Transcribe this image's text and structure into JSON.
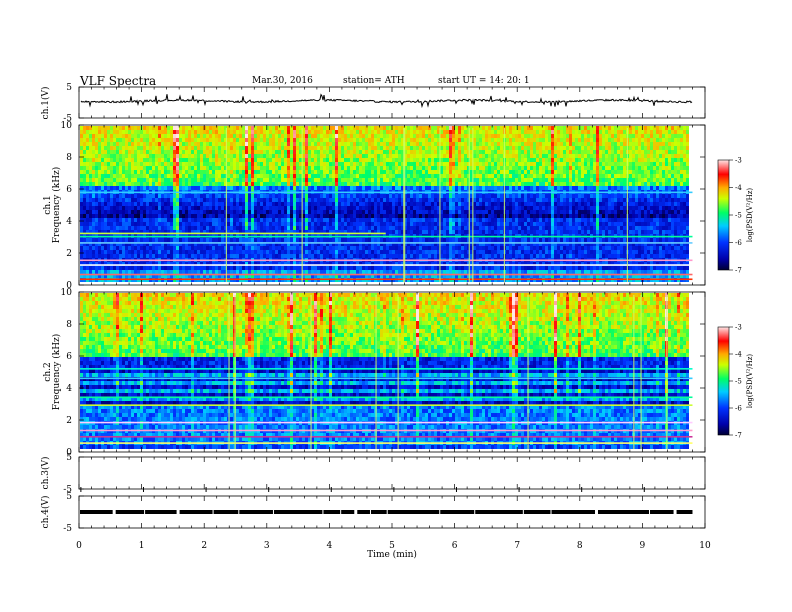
{
  "header": {
    "title": "VLF  Spectra",
    "date": "Mar.30, 2016",
    "station": "station= ATH",
    "start": "start  UT  =    14: 20: 1"
  },
  "chart_data": [
    {
      "type": "line",
      "panel": "ch1",
      "ylabel": "ch.1(V)",
      "ylim": [
        -5,
        5
      ],
      "yticks": [
        "5",
        "-5"
      ],
      "xlim": [
        0,
        10
      ],
      "description_level": "signal hovers near 0 V with spikes"
    },
    {
      "type": "heatmap",
      "panel": "ch1-spectrogram",
      "ylabel_line1": "ch.1",
      "ylabel_line2": "Frequency  (kHz)",
      "ylim": [
        0,
        10
      ],
      "yticks": [
        "0",
        "2",
        "4",
        "6",
        "8",
        "10"
      ],
      "xlim": [
        0,
        9.8
      ],
      "colorbar_label": "log(PSD(V²/Hz)",
      "colorbar_ticks": [
        "-3",
        "-4",
        "-5",
        "-6",
        "-7"
      ],
      "colorbar_range": [
        -7,
        -3
      ],
      "colorbar_colors": [
        "#000066",
        "#0000ff",
        "#00ccff",
        "#00ff66",
        "#ffff00",
        "#ff6600",
        "#ff0000",
        "#ffe0e0"
      ]
    },
    {
      "type": "heatmap",
      "panel": "ch2-spectrogram",
      "ylabel_line1": "ch.2",
      "ylabel_line2": "Frequency  (kHz)",
      "ylim": [
        0,
        10
      ],
      "yticks": [
        "0",
        "2",
        "4",
        "6",
        "8",
        "10"
      ],
      "xlim": [
        0,
        9.8
      ],
      "colorbar_label": "log(PSD(V²/Hz)",
      "colorbar_ticks": [
        "-3",
        "-4",
        "-5",
        "-6",
        "-7"
      ],
      "colorbar_range": [
        -7,
        -3
      ]
    },
    {
      "type": "line",
      "panel": "ch3",
      "ylabel": "ch.3(V)",
      "ylim": [
        -5,
        5
      ],
      "yticks": [
        "5",
        "-5"
      ],
      "xlim": [
        0,
        10
      ]
    },
    {
      "type": "line",
      "panel": "ch4",
      "ylabel": "ch.4(V)",
      "ylim": [
        -5,
        5
      ],
      "yticks": [
        "5",
        "-5"
      ],
      "xlim": [
        0,
        10
      ],
      "level": 0
    }
  ],
  "xaxis": {
    "label": "Time  (min)",
    "ticks": [
      "0",
      "1",
      "2",
      "3",
      "4",
      "5",
      "6",
      "7",
      "8",
      "9",
      "10"
    ]
  }
}
